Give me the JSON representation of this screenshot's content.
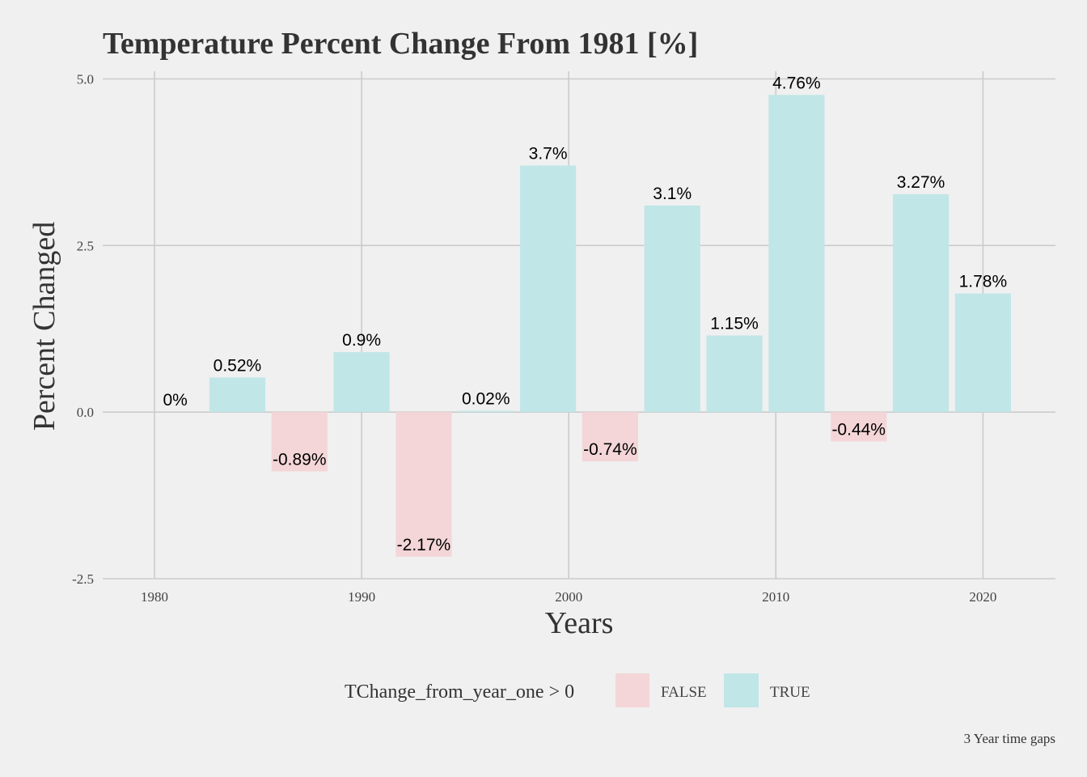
{
  "chart_data": {
    "type": "bar",
    "title": "Temperature Percent Change From 1981 [%]",
    "xlabel": "Years",
    "ylabel": "Percent Changed",
    "x": [
      1981,
      1984,
      1987,
      1990,
      1993,
      1996,
      1999,
      2002,
      2005,
      2008,
      2011,
      2014,
      2017,
      2020
    ],
    "values": [
      0,
      0.52,
      -0.89,
      0.9,
      -2.17,
      0.02,
      3.7,
      -0.74,
      3.1,
      1.15,
      4.76,
      -0.44,
      3.27,
      1.78
    ],
    "data_labels": [
      "0%",
      "0.52%",
      "-0.89%",
      "0.9%",
      "-2.17%",
      "0.02%",
      "3.7%",
      "-0.74%",
      "3.1%",
      "1.15%",
      "4.76%",
      "-0.44%",
      "3.27%",
      "1.78%"
    ],
    "xlim": [
      1977.5,
      2023.5
    ],
    "ylim": [
      -2.5,
      5.0
    ],
    "x_ticks": [
      1980,
      1990,
      2000,
      2010,
      2020
    ],
    "x_tick_labels": [
      "1980",
      "1990",
      "2000",
      "2010",
      "2020"
    ],
    "y_ticks": [
      5.0,
      2.5,
      0.0,
      -2.5
    ],
    "y_tick_labels": [
      "5.0",
      "2.5",
      "0.0",
      "-2.5"
    ],
    "grid": true,
    "legend": {
      "title": "TChange_from_year_one > 0",
      "position": "bottom",
      "entries": [
        {
          "label": "FALSE",
          "color": "#f4d6d8"
        },
        {
          "label": "TRUE",
          "color": "#c1e6e7"
        }
      ]
    },
    "caption": "3 Year time gaps"
  },
  "colors": {
    "background": "#f0f0f0",
    "grid": "#cbcbcb",
    "positive": "#c1e6e7",
    "negative": "#f4d6d8"
  }
}
